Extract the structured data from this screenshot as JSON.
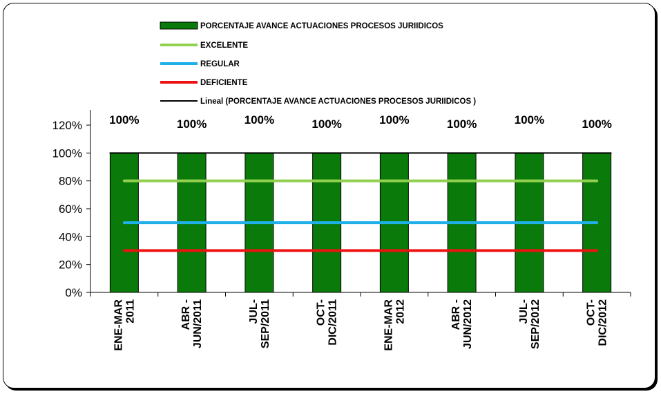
{
  "chart_data": {
    "type": "bar",
    "categories": [
      [
        "ENE-MAR",
        "2011"
      ],
      [
        "ABR -",
        "JUN/2011"
      ],
      [
        "JUL-",
        "SEP/2011"
      ],
      [
        "OCT-",
        "DIC/2011"
      ],
      [
        "ENE-MAR",
        "2012"
      ],
      [
        "ABR -",
        "JUN/2012"
      ],
      [
        "JUL-",
        "SEP/2012"
      ],
      [
        "OCT-",
        "DIC/2012"
      ]
    ],
    "series": [
      {
        "name": "PORCENTAJE AVANCE ACTUACIONES PROCESOS JURIIDICOS",
        "kind": "bar",
        "color": "#0a7a0a",
        "values": [
          100,
          100,
          100,
          100,
          100,
          100,
          100,
          100
        ]
      },
      {
        "name": "EXCELENTE",
        "kind": "line",
        "color": "#92d050",
        "values": [
          80,
          80,
          80,
          80,
          80,
          80,
          80,
          80
        ]
      },
      {
        "name": "REGULAR",
        "kind": "line",
        "color": "#1fb0e8",
        "values": [
          50,
          50,
          50,
          50,
          50,
          50,
          50,
          50
        ]
      },
      {
        "name": "DEFICIENTE",
        "kind": "line",
        "color": "#ee1111",
        "values": [
          30,
          30,
          30,
          30,
          30,
          30,
          30,
          30
        ]
      },
      {
        "name": "Lineal (PORCENTAJE AVANCE ACTUACIONES PROCESOS JURIIDICOS )",
        "kind": "trendline",
        "color": "#000000",
        "values": [
          100,
          100,
          100,
          100,
          100,
          100,
          100,
          100
        ]
      }
    ],
    "data_labels": [
      "100%",
      "100%",
      "100%",
      "100%",
      "100%",
      "100%",
      "100%",
      "100%"
    ],
    "yticks": [
      "0%",
      "20%",
      "40%",
      "60%",
      "80%",
      "100%",
      "120%"
    ],
    "ylim": [
      0,
      120
    ],
    "legend_position": "top",
    "grid": false
  }
}
